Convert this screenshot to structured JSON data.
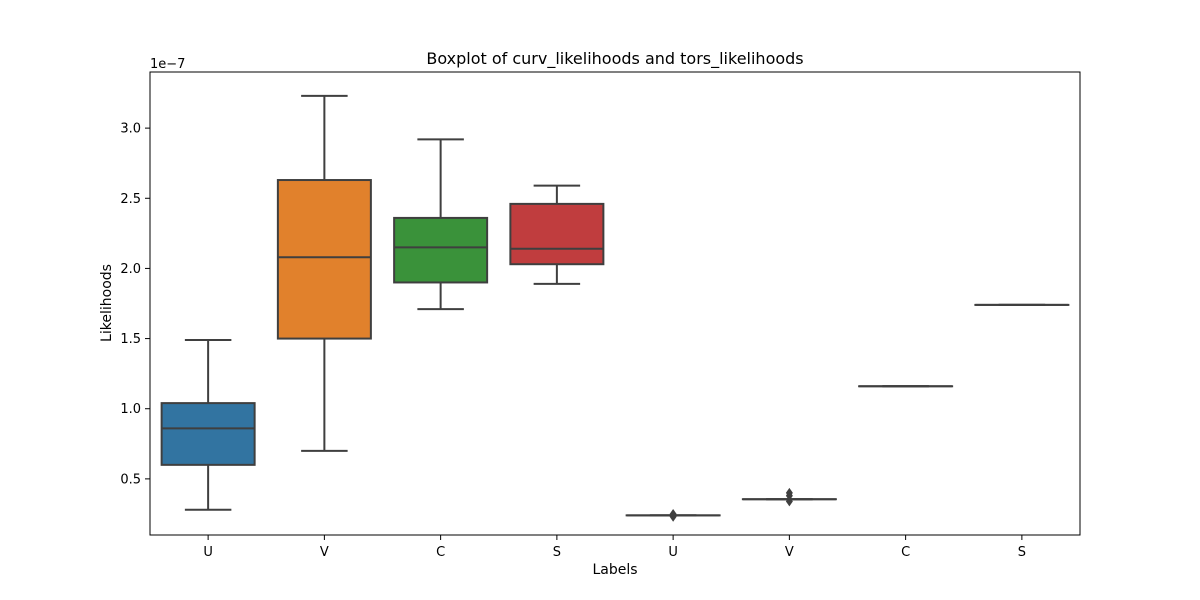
{
  "chart_data": {
    "type": "box",
    "title": "Boxplot of curv_likelihoods and tors_likelihoods",
    "xlabel": "Labels",
    "ylabel": "Likelihoods",
    "y_offset_label": "1e−7",
    "ylim": [
      0.1,
      3.4
    ],
    "y_unit_scale": 1e-07,
    "yticks": [
      0.5,
      1.0,
      1.5,
      2.0,
      2.5,
      3.0
    ],
    "ytick_labels": [
      "0.5",
      "1.0",
      "1.5",
      "2.0",
      "2.5",
      "3.0"
    ],
    "categories": [
      "U",
      "V",
      "C",
      "S",
      "U",
      "V",
      "C",
      "S"
    ],
    "boxes": [
      {
        "label": "U",
        "whisker_low": 0.28,
        "q1": 0.6,
        "median": 0.86,
        "q3": 1.04,
        "whisker_high": 1.49,
        "color": "#3274a1",
        "outliers": []
      },
      {
        "label": "V",
        "whisker_low": 0.7,
        "q1": 1.5,
        "median": 2.08,
        "q3": 2.63,
        "whisker_high": 3.23,
        "color": "#e1812c",
        "outliers": []
      },
      {
        "label": "C",
        "whisker_low": 1.71,
        "q1": 1.9,
        "median": 2.15,
        "q3": 2.36,
        "whisker_high": 2.92,
        "color": "#3a923a",
        "outliers": []
      },
      {
        "label": "S",
        "whisker_low": 1.89,
        "q1": 2.03,
        "median": 2.14,
        "q3": 2.46,
        "whisker_high": 2.59,
        "color": "#c03d3e",
        "outliers": []
      },
      {
        "label": "U",
        "whisker_low": 0.24,
        "q1": 0.24,
        "median": 0.24,
        "q3": 0.24,
        "whisker_high": 0.24,
        "color": "#9372b2",
        "outliers": [
          0.23,
          0.25
        ]
      },
      {
        "label": "V",
        "whisker_low": 0.355,
        "q1": 0.355,
        "median": 0.355,
        "q3": 0.355,
        "whisker_high": 0.355,
        "color": "#845b53",
        "outliers": [
          0.34,
          0.38,
          0.4
        ]
      },
      {
        "label": "C",
        "whisker_low": 1.16,
        "q1": 1.16,
        "median": 1.16,
        "q3": 1.16,
        "whisker_high": 1.16,
        "color": "#d684bd",
        "outliers": []
      },
      {
        "label": "S",
        "whisker_low": 1.74,
        "q1": 1.74,
        "median": 1.74,
        "q3": 1.74,
        "whisker_high": 1.74,
        "color": "#7f7f7f",
        "outliers": []
      }
    ],
    "line_color": "#3f3f3f",
    "grid": false,
    "legend": "none"
  }
}
